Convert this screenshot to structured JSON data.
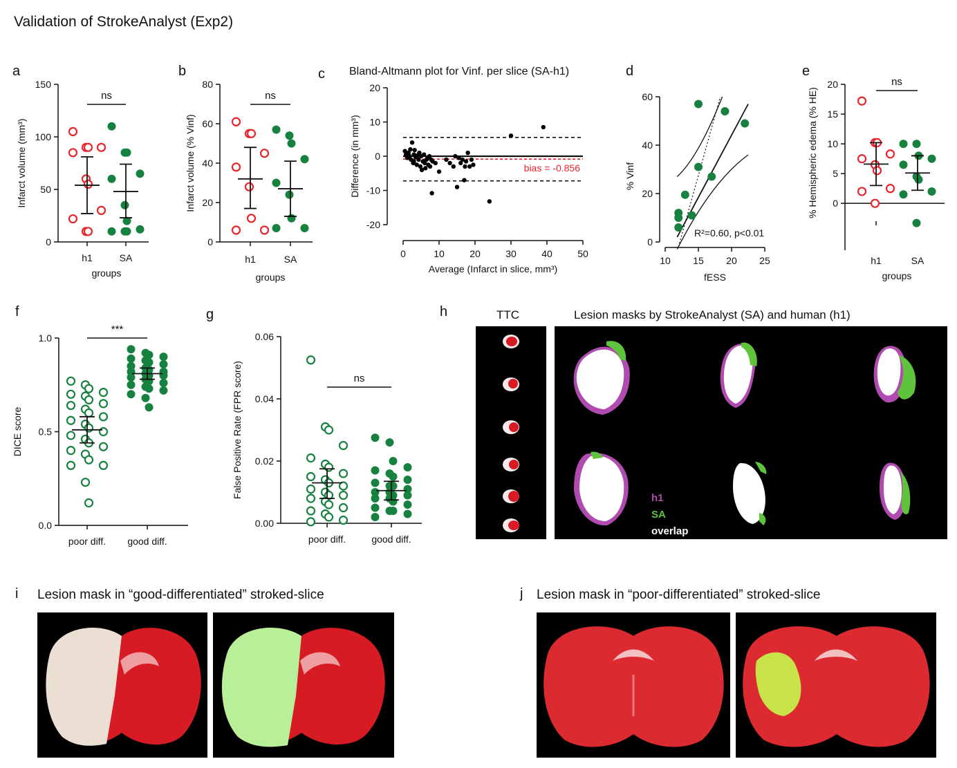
{
  "figure": {
    "title": "Validation of StrokeAnalyst (Exp2)",
    "panel_letters": [
      "a",
      "b",
      "c",
      "d",
      "e",
      "f",
      "g",
      "h",
      "i",
      "j"
    ]
  },
  "colors": {
    "h1_red": "#e8252a",
    "sa_green": "#17813f",
    "bias_red": "#e8252a",
    "mask_magenta": "#b04cb0",
    "mask_green": "#5fc43b"
  },
  "chart_data": [
    {
      "panel": "a",
      "type": "scatter",
      "categories": [
        "h1",
        "SA"
      ],
      "xlabel": "groups",
      "ylabel": "Infarct volume (mm³)",
      "ylim": [
        0,
        150
      ],
      "yticks": [
        0,
        50,
        100,
        150
      ],
      "annotation": "ns",
      "series": [
        {
          "name": "h1",
          "values": [
            105,
            90,
            90,
            90,
            85,
            60,
            55,
            30,
            22,
            10,
            10
          ],
          "mean": 54,
          "err": [
            27,
            81
          ],
          "style": "open-red"
        },
        {
          "name": "SA",
          "values": [
            110,
            85,
            85,
            65,
            60,
            35,
            20,
            12,
            10,
            10,
            10
          ],
          "mean": 48,
          "err": [
            23,
            74
          ],
          "style": "filled-green"
        }
      ]
    },
    {
      "panel": "b",
      "type": "scatter",
      "categories": [
        "h1",
        "SA"
      ],
      "xlabel": "groups",
      "ylabel": "Infarct volume (% Vinf)",
      "ylim": [
        0,
        80
      ],
      "yticks": [
        0,
        20,
        40,
        60,
        80
      ],
      "annotation": "ns",
      "series": [
        {
          "name": "h1",
          "values": [
            61,
            55,
            55,
            45,
            38,
            28,
            12,
            6,
            6
          ],
          "mean": 32,
          "err": [
            17,
            48
          ],
          "style": "open-red"
        },
        {
          "name": "SA",
          "values": [
            57,
            54,
            50,
            42,
            30,
            24,
            12,
            7,
            7
          ],
          "mean": 27,
          "err": [
            13,
            41
          ],
          "style": "filled-green"
        }
      ]
    },
    {
      "panel": "c",
      "type": "scatter",
      "title": "Bland-Altmann plot for Vinf. per slice (SA-h1)",
      "xlabel": "Average (Infarct in slice, mm³)",
      "ylabel": "Difference (in mm³)",
      "xlim": [
        0,
        50
      ],
      "ylim": [
        -20,
        20
      ],
      "xticks": [
        0,
        10,
        20,
        30,
        40,
        50
      ],
      "yticks": [
        -20,
        -10,
        0,
        10,
        20
      ],
      "bias": -0.856,
      "bias_label": "bias = -0.856",
      "loa": [
        5.5,
        -7.2
      ],
      "points": [
        [
          0.5,
          1.5
        ],
        [
          0.8,
          0.5
        ],
        [
          1,
          0
        ],
        [
          1.2,
          -0.5
        ],
        [
          1.5,
          1
        ],
        [
          1.8,
          0
        ],
        [
          2,
          2
        ],
        [
          2.2,
          -1
        ],
        [
          2.5,
          4
        ],
        [
          2.8,
          -2
        ],
        [
          3,
          0.5
        ],
        [
          3,
          -1.5
        ],
        [
          3.2,
          1.8
        ],
        [
          3.5,
          -0.3
        ],
        [
          3.8,
          -2.5
        ],
        [
          4,
          0.2
        ],
        [
          4.3,
          -1
        ],
        [
          4.5,
          1
        ],
        [
          4.8,
          -3
        ],
        [
          5,
          0
        ],
        [
          5.2,
          -4
        ],
        [
          5.5,
          -1.5
        ],
        [
          5.8,
          0.5
        ],
        [
          6,
          -2
        ],
        [
          6.2,
          -3.5
        ],
        [
          6.5,
          -1
        ],
        [
          6.8,
          -0.5
        ],
        [
          7,
          -2.5
        ],
        [
          7.3,
          0
        ],
        [
          7.5,
          -3
        ],
        [
          7.8,
          -1
        ],
        [
          8,
          -10.8
        ],
        [
          8.2,
          -1.5
        ],
        [
          9,
          -2
        ],
        [
          10,
          -4.5
        ],
        [
          12,
          -1
        ],
        [
          13,
          -2
        ],
        [
          14,
          -3
        ],
        [
          14.5,
          0
        ],
        [
          15,
          -9
        ],
        [
          15.5,
          -0.5
        ],
        [
          16,
          -2
        ],
        [
          16.5,
          -1
        ],
        [
          17,
          -7
        ],
        [
          17.2,
          -3
        ],
        [
          17.5,
          -1.5
        ],
        [
          18,
          1
        ],
        [
          18.5,
          -3
        ],
        [
          19,
          -1
        ],
        [
          19.5,
          -2.5
        ],
        [
          24,
          -13.2
        ],
        [
          30,
          6
        ],
        [
          39,
          8.5
        ]
      ]
    },
    {
      "panel": "d",
      "type": "scatter",
      "xlabel": "fESS",
      "ylabel": "% Vinf",
      "xlim": [
        10,
        25
      ],
      "ylim": [
        0,
        60
      ],
      "xticks": [
        10,
        15,
        20,
        25
      ],
      "yticks": [
        0,
        20,
        40,
        60
      ],
      "annotation": "R²=0.60, p<0.01",
      "points": [
        [
          12,
          6
        ],
        [
          12,
          10
        ],
        [
          12,
          12
        ],
        [
          13,
          19.5
        ],
        [
          14,
          11
        ],
        [
          15,
          31
        ],
        [
          15,
          57
        ],
        [
          17,
          27
        ],
        [
          19,
          54
        ],
        [
          22,
          49
        ]
      ]
    },
    {
      "panel": "e",
      "type": "scatter",
      "categories": [
        "h1",
        "SA"
      ],
      "xlabel": "groups",
      "ylabel": "% Hemispheric edema (% HE)",
      "ylim": [
        -3,
        20
      ],
      "yticks": [
        0,
        5,
        10,
        15,
        20
      ],
      "annotation": "ns",
      "series": [
        {
          "name": "h1",
          "values": [
            17.2,
            10.2,
            10.2,
            8.3,
            7.5,
            6.5,
            5.5,
            2.5,
            2,
            0
          ],
          "mean": 6.6,
          "err": [
            3,
            10.2
          ],
          "style": "open-red"
        },
        {
          "name": "SA",
          "values": [
            10,
            10,
            8,
            7.5,
            6.5,
            4.5,
            4,
            2,
            1.5,
            -3.3
          ],
          "mean": 5.1,
          "err": [
            2.2,
            8
          ],
          "style": "filled-green"
        }
      ]
    },
    {
      "panel": "f",
      "type": "scatter",
      "categories": [
        "poor diff.",
        "good diff."
      ],
      "ylabel": "DICE score",
      "ylim": [
        0,
        1
      ],
      "yticks": [
        0.0,
        0.5,
        1.0
      ],
      "annotation": "***",
      "series": [
        {
          "name": "poor diff.",
          "values": [
            0.77,
            0.75,
            0.73,
            0.71,
            0.7,
            0.69,
            0.67,
            0.65,
            0.64,
            0.62,
            0.6,
            0.58,
            0.56,
            0.54,
            0.52,
            0.5,
            0.48,
            0.46,
            0.44,
            0.42,
            0.4,
            0.38,
            0.35,
            0.32,
            0.32,
            0.23,
            0.12
          ],
          "mean": 0.51,
          "err": [
            0.44,
            0.58
          ],
          "style": "open-green"
        },
        {
          "name": "good diff.",
          "values": [
            0.94,
            0.92,
            0.91,
            0.9,
            0.89,
            0.88,
            0.87,
            0.86,
            0.85,
            0.84,
            0.83,
            0.82,
            0.82,
            0.81,
            0.8,
            0.8,
            0.79,
            0.78,
            0.77,
            0.76,
            0.75,
            0.74,
            0.73,
            0.72,
            0.7,
            0.68,
            0.63
          ],
          "mean": 0.81,
          "err": [
            0.78,
            0.84
          ],
          "style": "filled-green"
        }
      ]
    },
    {
      "panel": "g",
      "type": "scatter",
      "categories": [
        "poor diff.",
        "good diff."
      ],
      "ylabel": "False Positive Rate (FPR score)",
      "ylim": [
        0,
        0.06
      ],
      "yticks": [
        0.0,
        0.02,
        0.04,
        0.06
      ],
      "annotation": "ns",
      "series": [
        {
          "name": "poor diff.",
          "values": [
            0.0525,
            0.031,
            0.03,
            0.025,
            0.021,
            0.019,
            0.018,
            0.016,
            0.015,
            0.014,
            0.013,
            0.012,
            0.011,
            0.01,
            0.009,
            0.009,
            0.008,
            0.007,
            0.006,
            0.005,
            0.004,
            0.003,
            0.002,
            0.001,
            0.0005
          ],
          "mean": 0.013,
          "err": [
            0.008,
            0.0175
          ],
          "style": "open-green"
        },
        {
          "name": "good diff.",
          "values": [
            0.0275,
            0.026,
            0.02,
            0.018,
            0.017,
            0.016,
            0.015,
            0.014,
            0.013,
            0.012,
            0.012,
            0.011,
            0.01,
            0.01,
            0.009,
            0.009,
            0.008,
            0.008,
            0.007,
            0.006,
            0.005,
            0.004,
            0.004,
            0.003,
            0.002
          ],
          "mean": 0.0105,
          "err": [
            0.0075,
            0.0135
          ],
          "style": "filled-green"
        }
      ]
    }
  ],
  "panel_h": {
    "ttc_label": "TTC",
    "title": "Lesion masks by StrokeAnalyst (SA) and human (h1)",
    "legend": [
      "h1",
      "SA",
      "overlap"
    ]
  },
  "panel_i": {
    "title": "Lesion mask in “good-differentiated” stroked-slice"
  },
  "panel_j": {
    "title": "Lesion mask in “poor-differentiated” stroked-slice"
  }
}
